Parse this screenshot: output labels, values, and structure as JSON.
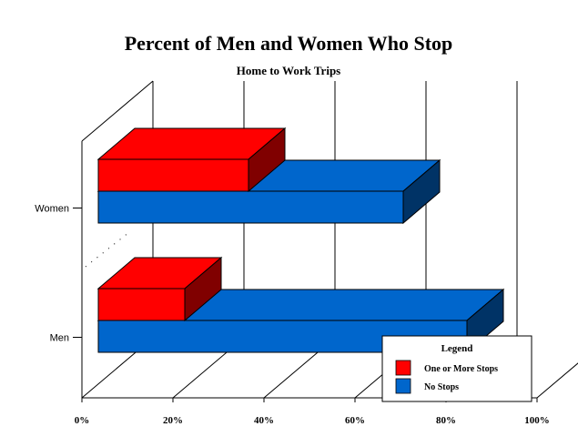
{
  "chart_data": {
    "type": "bar",
    "orientation": "horizontal",
    "style": "3d",
    "title": "Percent of Men and Women Who Stop",
    "subtitle": "Home to Work Trips",
    "categories": [
      "Women",
      "Men"
    ],
    "series": [
      {
        "name": "One or More Stops",
        "values": [
          33,
          19
        ],
        "color": "#ff0000"
      },
      {
        "name": "No Stops",
        "values": [
          67,
          81
        ],
        "color": "#0066cc"
      }
    ],
    "xlim": [
      0,
      100
    ],
    "x_ticks": [
      "0%",
      "20%",
      "40%",
      "60%",
      "80%",
      "100%"
    ],
    "grid": true,
    "legend": {
      "title": "Legend",
      "placement": "bottom-right"
    }
  }
}
